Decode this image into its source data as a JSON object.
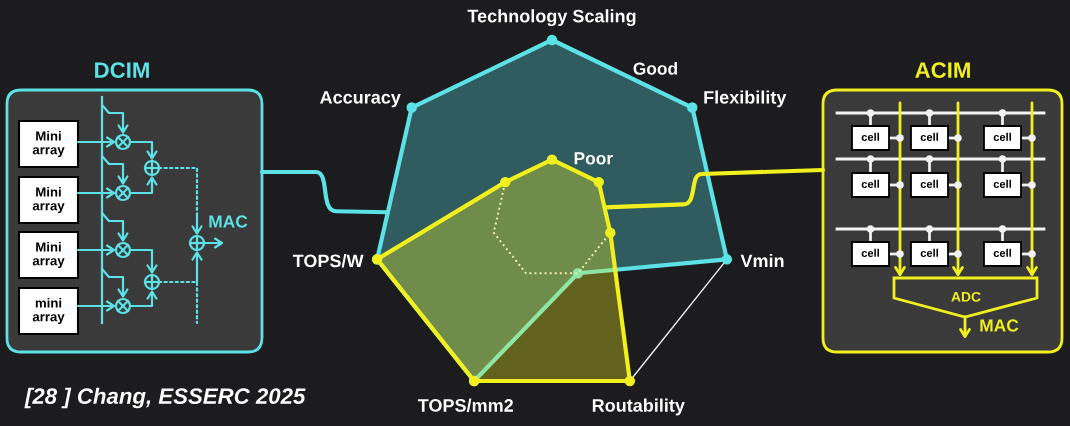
{
  "chart_data": {
    "type": "radar",
    "categories": [
      "Technology Scaling",
      "Flexibility",
      "Vmin",
      "Routability",
      "TOPS/mm2",
      "TOPS/W",
      "Accuracy"
    ],
    "series": [
      {
        "name": "DCIM",
        "color": "#5ce1e6",
        "values": [
          3,
          3,
          3,
          1,
          3,
          3,
          3
        ]
      },
      {
        "name": "ACIM",
        "color": "#f2ef1f",
        "values": [
          1,
          1,
          1,
          3,
          3,
          3,
          1
        ]
      }
    ],
    "ylim": [
      0,
      3
    ],
    "yticks": [
      {
        "value": 1,
        "label": "Poor"
      },
      {
        "value": 3,
        "label": "Good"
      }
    ],
    "grid": true,
    "marker": "circle",
    "annotations": [
      "[28 ] Chang, ESSERC 2025",
      "Mini\narray",
      "Mini\narray",
      "Mini\narray",
      "mini\narray",
      "MAC",
      "cell",
      "cell",
      "cell",
      "cell",
      "cell",
      "cell",
      "cell",
      "cell",
      "cell",
      "ADC",
      "MAC"
    ]
  }
}
